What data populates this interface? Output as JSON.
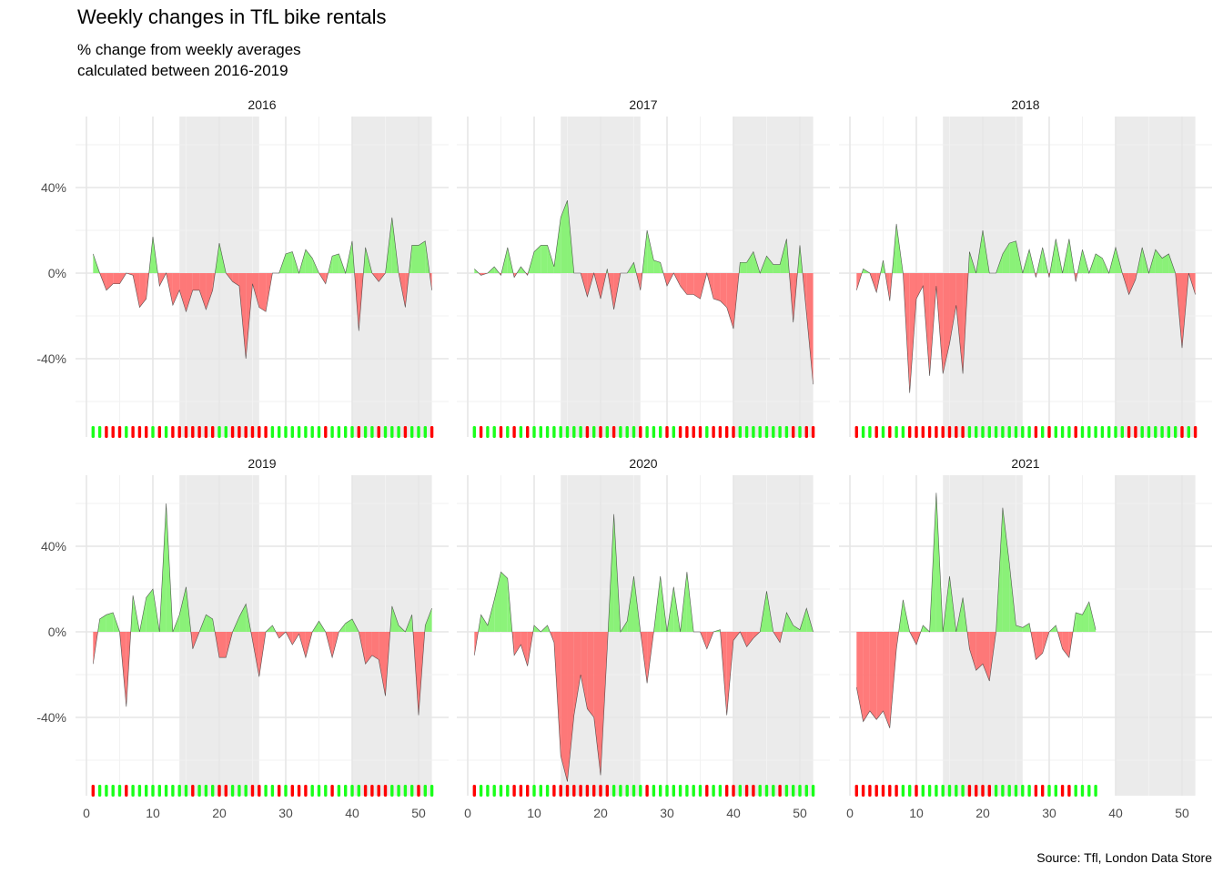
{
  "header": {
    "title": "Weekly changes in TfL bike rentals",
    "subtitle": "% change from weekly averages\ncalculated between 2016-2019",
    "caption": "Source: Tfl, London Data Store"
  },
  "colors": {
    "positive": "#80f26c",
    "negative": "#ff6b6b",
    "tick_up": "#1aff1a",
    "tick_down": "#ff0000",
    "shade": "#ebebeb",
    "grid": "#e6e6e6"
  },
  "chart_data": {
    "type": "area",
    "x_ticks": [
      0,
      10,
      20,
      30,
      40,
      50
    ],
    "y_ticks": [
      "40%",
      "0%",
      "-40%"
    ],
    "y_tick_values": [
      40,
      0,
      -40
    ],
    "xlim": [
      0,
      53
    ],
    "ylim": [
      -65,
      65
    ],
    "shaded_weeks": [
      [
        14,
        26
      ],
      [
        40,
        52
      ]
    ],
    "panels": [
      {
        "year": "2016",
        "values": [
          9,
          0,
          -8,
          -5,
          -5,
          0,
          -1,
          -16,
          -12,
          17,
          -6,
          0,
          -15,
          -8,
          -18,
          -8,
          -8,
          -17,
          -8,
          14,
          0,
          -4,
          -6,
          -40,
          -5,
          -16,
          -18,
          0,
          0,
          9,
          10,
          0,
          11,
          7,
          0,
          -5,
          8,
          9,
          0,
          15,
          -27,
          12,
          0,
          -4,
          0,
          26,
          0,
          -16,
          13,
          13,
          15,
          -8
        ]
      },
      {
        "year": "2017",
        "values": [
          2,
          -1,
          0,
          3,
          -1,
          12,
          -2,
          3,
          -1,
          10,
          13,
          13,
          3,
          26,
          34,
          0,
          0,
          -11,
          0,
          -12,
          2,
          -17,
          0,
          0,
          5,
          -8,
          20,
          6,
          5,
          -6,
          0,
          -6,
          -10,
          -10,
          -12,
          0,
          -12,
          -13,
          -16,
          -26,
          5,
          5,
          10,
          0,
          8,
          4,
          4,
          16,
          -23,
          13,
          -19,
          -52
        ]
      },
      {
        "year": "2018",
        "values": [
          -8,
          2,
          0,
          -9,
          6,
          -13,
          23,
          0,
          -56,
          -12,
          -6,
          -48,
          -6,
          -47,
          -33,
          -15,
          -47,
          10,
          0,
          20,
          0,
          0,
          9,
          14,
          15,
          0,
          11,
          -2,
          12,
          -2,
          16,
          0,
          16,
          -4,
          11,
          0,
          9,
          7,
          0,
          12,
          0,
          -10,
          -3,
          12,
          0,
          11,
          7,
          9,
          0,
          -35,
          0,
          -10
        ]
      },
      {
        "year": "2019",
        "values": [
          -15,
          6,
          8,
          9,
          0,
          -35,
          17,
          0,
          16,
          20,
          0,
          60,
          0,
          8,
          21,
          -8,
          0,
          8,
          6,
          -12,
          -12,
          0,
          7,
          13,
          -4,
          -21,
          0,
          3,
          -3,
          0,
          -6,
          -1,
          -12,
          0,
          5,
          0,
          -12,
          0,
          4,
          6,
          0,
          -15,
          -11,
          -13,
          -30,
          12,
          3,
          0,
          8,
          -39,
          3,
          11
        ]
      },
      {
        "year": "2020",
        "values": [
          -11,
          8,
          3,
          15,
          28,
          25,
          -11,
          -6,
          -16,
          3,
          0,
          3,
          -5,
          -58,
          -70,
          -39,
          -20,
          -36,
          -40,
          -67,
          -8,
          55,
          0,
          5,
          26,
          0,
          -24,
          0,
          26,
          0,
          21,
          0,
          28,
          0,
          0,
          -8,
          0,
          1,
          -39,
          -4,
          0,
          -7,
          -3,
          0,
          19,
          0,
          -5,
          9,
          3,
          1,
          11,
          0
        ]
      },
      {
        "year": "2021",
        "values": [
          -26,
          -42,
          -37,
          -41,
          -37,
          -45,
          -8,
          15,
          0,
          -6,
          3,
          0,
          65,
          0,
          26,
          0,
          16,
          -8,
          -18,
          -15,
          -23,
          0,
          58,
          32,
          3,
          2,
          4,
          -13,
          -10,
          0,
          3,
          -8,
          -12,
          9,
          8,
          14,
          1
        ]
      }
    ]
  }
}
